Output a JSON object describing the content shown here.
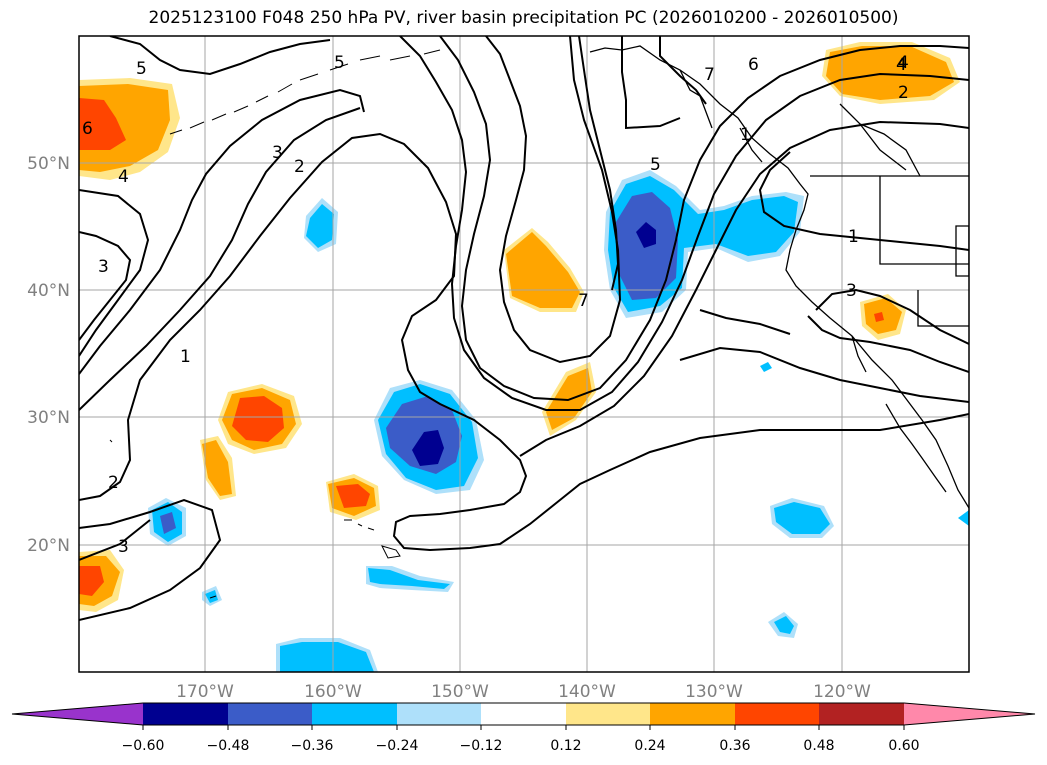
{
  "title": "2025123100 F048 250 hPa PV, river basin precipitation PC (2026010200 - 2026010500)",
  "map": {
    "region": "North Pacific / western North America",
    "lon_range": [
      -180,
      -110
    ],
    "lat_range": [
      10,
      60
    ],
    "lat_ticks": [
      "50°N",
      "40°N",
      "30°N",
      "20°N"
    ],
    "lon_ticks": [
      "170°W",
      "160°W",
      "150°W",
      "140°W",
      "130°W",
      "120°W"
    ],
    "contour_labels": [
      "5",
      "5",
      "6",
      "4",
      "4",
      "3",
      "3",
      "2",
      "1",
      "2",
      "3",
      "5",
      "6",
      "7",
      "4",
      "2",
      "1",
      "1",
      "3",
      "7"
    ],
    "tick_label_color": "#808080"
  },
  "colorbar": {
    "labels": [
      "−0.60",
      "−0.48",
      "−0.36",
      "−0.24",
      "−0.12",
      "0.12",
      "0.24",
      "0.36",
      "0.48",
      "0.60"
    ],
    "colors": [
      "#9933cc",
      "#000090",
      "#3b5cc8",
      "#00bfff",
      "#aee0fa",
      "#ffffff",
      "#ffe68a",
      "#ffa500",
      "#ff4500",
      "#b22222",
      "#ff88aa"
    ]
  }
}
